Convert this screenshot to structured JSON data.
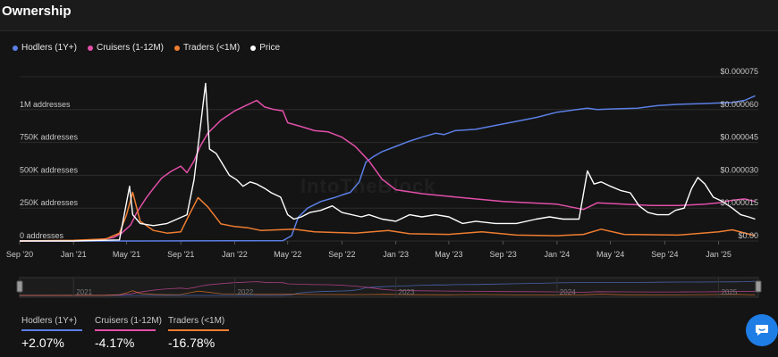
{
  "page": {
    "title": "Ownership",
    "watermark": "IntoTheBlock"
  },
  "colors": {
    "hodlers": "#5b7fe6",
    "cruisers": "#e24fa9",
    "traders": "#ef7d31",
    "price": "#ffffff"
  },
  "legend": [
    {
      "name": "Hodlers (1Y+)",
      "color": "#5b7fe6"
    },
    {
      "name": "Cruisers (1-12M)",
      "color": "#e24fa9"
    },
    {
      "name": "Traders (<1M)",
      "color": "#ef7d31"
    },
    {
      "name": "Price",
      "color": "#ffffff"
    }
  ],
  "stats": [
    {
      "label": "Hodlers (1Y+)",
      "value": "+2.07%",
      "color": "#5b7fe6"
    },
    {
      "label": "Cruisers (1-12M)",
      "value": "-4.17%",
      "color": "#e24fa9"
    },
    {
      "label": "Traders (<1M)",
      "value": "-16.78%",
      "color": "#ef7d31"
    }
  ],
  "chart_data": {
    "type": "line",
    "title": "Ownership",
    "xlim": [
      "2020-09-01",
      "2025-04-01"
    ],
    "x_ticks": [
      {
        "date": "2020-09-01",
        "label": "Sep '20"
      },
      {
        "date": "2021-01-01",
        "label": "Jan '21"
      },
      {
        "date": "2021-05-01",
        "label": "May '21"
      },
      {
        "date": "2021-09-01",
        "label": "Sep '21"
      },
      {
        "date": "2022-01-01",
        "label": "Jan '22"
      },
      {
        "date": "2022-05-01",
        "label": "May '22"
      },
      {
        "date": "2022-09-01",
        "label": "Sep '22"
      },
      {
        "date": "2023-01-01",
        "label": "Jan '23"
      },
      {
        "date": "2023-05-01",
        "label": "May '23"
      },
      {
        "date": "2023-09-01",
        "label": "Sep '23"
      },
      {
        "date": "2024-01-01",
        "label": "Jan '24"
      },
      {
        "date": "2024-05-01",
        "label": "May '24"
      },
      {
        "date": "2024-09-01",
        "label": "Sep '24"
      },
      {
        "date": "2025-01-01",
        "label": "Jan '25"
      }
    ],
    "y_left": {
      "ylim": [
        0,
        1250000
      ],
      "ticks": [
        {
          "value": 0,
          "label": "0 addresses"
        },
        {
          "value": 250000,
          "label": "250K addresses"
        },
        {
          "value": 500000,
          "label": "500K addresses"
        },
        {
          "value": 750000,
          "label": "750K addresses"
        },
        {
          "value": 1000000,
          "label": "1M addresses"
        }
      ]
    },
    "y_right": {
      "ylim": [
        0,
        7.5e-05
      ],
      "ticks": [
        {
          "value": 0,
          "label": "$0.00"
        },
        {
          "value": 1.5e-05,
          "label": "$0.000015"
        },
        {
          "value": 3e-05,
          "label": "$0.000030"
        },
        {
          "value": 4.5e-05,
          "label": "$0.000045"
        },
        {
          "value": 6e-05,
          "label": "$0.000060"
        },
        {
          "value": 7.5e-05,
          "label": "$0.000075"
        }
      ]
    },
    "grid": true,
    "legend_position": "top-left",
    "series": [
      {
        "name": "Hodlers (1Y+)",
        "axis": "left",
        "color": "#5b7fe6",
        "points": [
          [
            "2020-09-01",
            0
          ],
          [
            "2021-06-01",
            0
          ],
          [
            "2022-04-20",
            3000
          ],
          [
            "2022-05-10",
            40000
          ],
          [
            "2022-05-25",
            180000
          ],
          [
            "2022-06-15",
            250000
          ],
          [
            "2022-07-15",
            300000
          ],
          [
            "2022-08-15",
            330000
          ],
          [
            "2022-09-01",
            350000
          ],
          [
            "2022-09-20",
            370000
          ],
          [
            "2022-10-10",
            450000
          ],
          [
            "2022-10-25",
            600000
          ],
          [
            "2022-11-10",
            640000
          ],
          [
            "2022-12-01",
            680000
          ],
          [
            "2023-01-01",
            720000
          ],
          [
            "2023-02-01",
            760000
          ],
          [
            "2023-03-01",
            790000
          ],
          [
            "2023-04-01",
            820000
          ],
          [
            "2023-04-20",
            810000
          ],
          [
            "2023-05-15",
            840000
          ],
          [
            "2023-07-01",
            850000
          ],
          [
            "2023-08-15",
            880000
          ],
          [
            "2023-10-01",
            910000
          ],
          [
            "2023-11-15",
            940000
          ],
          [
            "2024-01-01",
            980000
          ],
          [
            "2024-02-15",
            1000000
          ],
          [
            "2024-03-10",
            1010000
          ],
          [
            "2024-04-01",
            1000000
          ],
          [
            "2024-05-01",
            1005000
          ],
          [
            "2024-07-01",
            1010000
          ],
          [
            "2024-08-15",
            1030000
          ],
          [
            "2024-10-01",
            1040000
          ],
          [
            "2024-11-15",
            1045000
          ],
          [
            "2025-01-01",
            1050000
          ],
          [
            "2025-02-01",
            1055000
          ],
          [
            "2025-03-01",
            1070000
          ],
          [
            "2025-03-25",
            1105000
          ]
        ]
      },
      {
        "name": "Cruisers (1-12M)",
        "axis": "left",
        "color": "#e24fa9",
        "points": [
          [
            "2020-09-01",
            0
          ],
          [
            "2021-01-01",
            2000
          ],
          [
            "2021-03-01",
            10000
          ],
          [
            "2021-04-01",
            25000
          ],
          [
            "2021-04-20",
            60000
          ],
          [
            "2021-05-10",
            120000
          ],
          [
            "2021-05-25",
            220000
          ],
          [
            "2021-06-15",
            330000
          ],
          [
            "2021-07-01",
            400000
          ],
          [
            "2021-07-20",
            480000
          ],
          [
            "2021-08-10",
            530000
          ],
          [
            "2021-09-01",
            570000
          ],
          [
            "2021-09-15",
            520000
          ],
          [
            "2021-10-01",
            610000
          ],
          [
            "2021-10-15",
            720000
          ],
          [
            "2021-11-01",
            820000
          ],
          [
            "2021-12-01",
            920000
          ],
          [
            "2022-01-01",
            990000
          ],
          [
            "2022-02-01",
            1040000
          ],
          [
            "2022-02-20",
            1070000
          ],
          [
            "2022-03-10",
            1020000
          ],
          [
            "2022-04-01",
            1000000
          ],
          [
            "2022-04-20",
            990000
          ],
          [
            "2022-05-01",
            900000
          ],
          [
            "2022-06-01",
            870000
          ],
          [
            "2022-07-01",
            840000
          ],
          [
            "2022-08-01",
            830000
          ],
          [
            "2022-09-01",
            790000
          ],
          [
            "2022-10-01",
            720000
          ],
          [
            "2022-11-01",
            610000
          ],
          [
            "2022-12-01",
            470000
          ],
          [
            "2023-01-01",
            390000
          ],
          [
            "2023-03-01",
            360000
          ],
          [
            "2023-05-01",
            340000
          ],
          [
            "2023-07-01",
            320000
          ],
          [
            "2023-09-01",
            300000
          ],
          [
            "2023-11-01",
            290000
          ],
          [
            "2024-01-01",
            280000
          ],
          [
            "2024-03-01",
            240000
          ],
          [
            "2024-04-01",
            290000
          ],
          [
            "2024-06-01",
            280000
          ],
          [
            "2024-08-01",
            270000
          ],
          [
            "2024-10-01",
            270000
          ],
          [
            "2024-12-01",
            280000
          ],
          [
            "2025-01-01",
            290000
          ],
          [
            "2025-02-01",
            310000
          ],
          [
            "2025-03-01",
            320000
          ],
          [
            "2025-03-25",
            300000
          ]
        ]
      },
      {
        "name": "Traders (<1M)",
        "axis": "left",
        "color": "#ef7d31",
        "points": [
          [
            "2020-09-01",
            0
          ],
          [
            "2021-01-01",
            5000
          ],
          [
            "2021-03-15",
            15000
          ],
          [
            "2021-04-15",
            60000
          ],
          [
            "2021-05-01",
            200000
          ],
          [
            "2021-05-15",
            370000
          ],
          [
            "2021-06-01",
            150000
          ],
          [
            "2021-07-01",
            80000
          ],
          [
            "2021-08-01",
            60000
          ],
          [
            "2021-09-01",
            70000
          ],
          [
            "2021-09-20",
            200000
          ],
          [
            "2021-10-10",
            330000
          ],
          [
            "2021-11-01",
            260000
          ],
          [
            "2021-12-01",
            130000
          ],
          [
            "2022-01-01",
            110000
          ],
          [
            "2022-02-01",
            100000
          ],
          [
            "2022-03-01",
            80000
          ],
          [
            "2022-05-15",
            90000
          ],
          [
            "2022-07-01",
            70000
          ],
          [
            "2022-10-01",
            60000
          ],
          [
            "2022-12-15",
            80000
          ],
          [
            "2023-02-01",
            55000
          ],
          [
            "2023-05-01",
            50000
          ],
          [
            "2023-07-15",
            70000
          ],
          [
            "2023-10-01",
            45000
          ],
          [
            "2024-01-01",
            40000
          ],
          [
            "2024-03-01",
            50000
          ],
          [
            "2024-04-10",
            90000
          ],
          [
            "2024-06-01",
            50000
          ],
          [
            "2024-10-01",
            45000
          ],
          [
            "2025-01-01",
            70000
          ],
          [
            "2025-02-01",
            85000
          ],
          [
            "2025-03-25",
            40000
          ]
        ]
      },
      {
        "name": "Price",
        "axis": "right",
        "color": "#ffffff",
        "points": [
          [
            "2020-09-01",
            0
          ],
          [
            "2021-01-01",
            0
          ],
          [
            "2021-04-15",
            5e-07
          ],
          [
            "2021-05-08",
            2.5e-05
          ],
          [
            "2021-05-15",
            1.2e-05
          ],
          [
            "2021-06-01",
            8e-06
          ],
          [
            "2021-07-01",
            7e-06
          ],
          [
            "2021-08-01",
            8e-06
          ],
          [
            "2021-09-15",
            1.2e-05
          ],
          [
            "2021-10-01",
            2.8e-05
          ],
          [
            "2021-10-27",
            7.2e-05
          ],
          [
            "2021-11-05",
            4.2e-05
          ],
          [
            "2021-11-20",
            4e-05
          ],
          [
            "2021-12-05",
            3.5e-05
          ],
          [
            "2021-12-20",
            3e-05
          ],
          [
            "2022-01-05",
            2.8e-05
          ],
          [
            "2022-01-20",
            2.5e-05
          ],
          [
            "2022-02-05",
            2.7e-05
          ],
          [
            "2022-02-20",
            2.6e-05
          ],
          [
            "2022-03-10",
            2.4e-05
          ],
          [
            "2022-03-25",
            2.2e-05
          ],
          [
            "2022-04-15",
            2e-05
          ],
          [
            "2022-05-01",
            1.2e-05
          ],
          [
            "2022-05-15",
            1e-05
          ],
          [
            "2022-06-01",
            1.1e-05
          ],
          [
            "2022-06-20",
            1.3e-05
          ],
          [
            "2022-07-15",
            1.4e-05
          ],
          [
            "2022-08-10",
            1.6e-05
          ],
          [
            "2022-09-01",
            1.3e-05
          ],
          [
            "2022-10-15",
            1.1e-05
          ],
          [
            "2022-11-01",
            1.2e-05
          ],
          [
            "2022-12-01",
            1e-05
          ],
          [
            "2023-01-01",
            9e-06
          ],
          [
            "2023-02-01",
            1.2e-05
          ],
          [
            "2023-03-01",
            1.1e-05
          ],
          [
            "2023-04-01",
            1.2e-05
          ],
          [
            "2023-05-01",
            1.1e-05
          ],
          [
            "2023-06-01",
            8e-06
          ],
          [
            "2023-07-01",
            9e-06
          ],
          [
            "2023-08-15",
            8e-06
          ],
          [
            "2023-10-01",
            8e-06
          ],
          [
            "2023-11-15",
            1e-05
          ],
          [
            "2023-12-15",
            1.1e-05
          ],
          [
            "2024-01-15",
            1e-05
          ],
          [
            "2024-02-20",
            1e-05
          ],
          [
            "2024-03-10",
            3.2e-05
          ],
          [
            "2024-03-25",
            2.6e-05
          ],
          [
            "2024-04-10",
            2.7e-05
          ],
          [
            "2024-05-01",
            2.5e-05
          ],
          [
            "2024-05-25",
            2.3e-05
          ],
          [
            "2024-06-15",
            2.2e-05
          ],
          [
            "2024-07-05",
            1.6e-05
          ],
          [
            "2024-07-25",
            1.3e-05
          ],
          [
            "2024-08-15",
            1.2e-05
          ],
          [
            "2024-09-10",
            1.2e-05
          ],
          [
            "2024-09-25",
            1.4e-05
          ],
          [
            "2024-10-15",
            1.5e-05
          ],
          [
            "2024-11-01",
            2.4e-05
          ],
          [
            "2024-11-15",
            2.9e-05
          ],
          [
            "2024-12-01",
            2.6e-05
          ],
          [
            "2024-12-20",
            2e-05
          ],
          [
            "2025-01-10",
            1.8e-05
          ],
          [
            "2025-02-01",
            1.5e-05
          ],
          [
            "2025-02-20",
            1.2e-05
          ],
          [
            "2025-03-10",
            1.1e-05
          ],
          [
            "2025-03-25",
            1e-05
          ]
        ]
      }
    ],
    "navigator": {
      "labels": [
        "2021",
        "2022",
        "2023",
        "2024",
        "2025"
      ]
    }
  }
}
